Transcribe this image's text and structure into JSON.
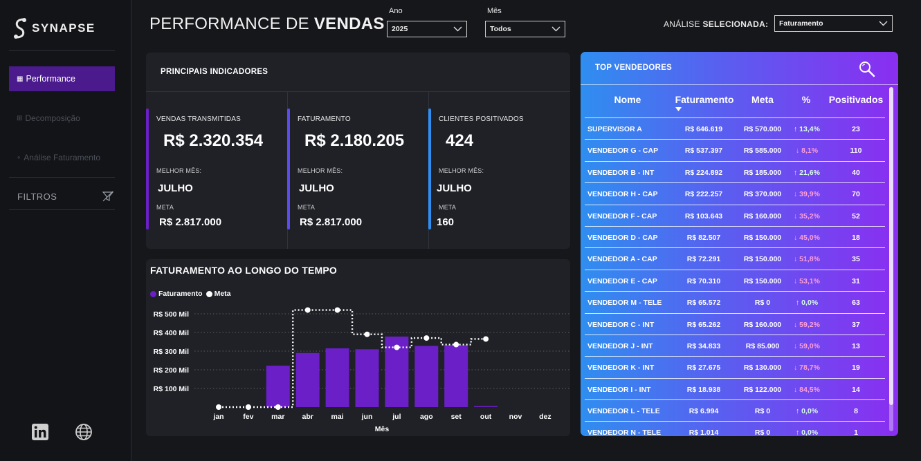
{
  "app": {
    "logo_text": "SYNAPSE"
  },
  "sidebar": {
    "items": [
      {
        "label": "Performance",
        "icon": "grid-icon"
      },
      {
        "label": "Decomposição",
        "icon": "tree-icon"
      },
      {
        "label": "Análise Faturamento",
        "icon": "link-icon"
      }
    ],
    "filters_label": "FILTROS"
  },
  "header": {
    "title_light": "PERFORMANCE DE ",
    "title_bold": "VENDAS",
    "year_label": "Ano",
    "year_value": "2025",
    "month_label": "Mês",
    "month_value": "Todos",
    "analysis_label_light": "ANÁLISE ",
    "analysis_label_bold": "SELECIONADA:",
    "analysis_value": "Faturamento"
  },
  "kpis": {
    "title": "PRINCIPAIS INDICADORES",
    "cards": [
      {
        "label": "VENDAS TRANSMITIDAS",
        "value": "R$ 2.320.354",
        "best_label": "MELHOR MÊS:",
        "best_value": "JULHO",
        "meta_label": "META",
        "meta_value": "R$ 2.817.000",
        "color": "#6a1fc7"
      },
      {
        "label": "FATURAMENTO",
        "value": "R$ 2.180.205",
        "best_label": "MELHOR MÊS:",
        "best_value": "JULHO",
        "meta_label": "META",
        "meta_value": "R$ 2.817.000",
        "color": "#5b4cf0"
      },
      {
        "label": "CLIENTES POSITIVADOS",
        "value": "424",
        "best_label": "MELHOR MÊS:",
        "best_value": "JULHO",
        "meta_label": "META",
        "meta_value": "160",
        "color": "#2f8ef0"
      }
    ]
  },
  "chart": {
    "title": "FATURAMENTO AO LONGO DO TEMPO",
    "legend": [
      "Faturamento",
      "Meta"
    ]
  },
  "chart_data": {
    "type": "bar",
    "title": "FATURAMENTO AO LONGO DO TEMPO",
    "categories": [
      "jan",
      "fev",
      "mar",
      "abr",
      "mai",
      "jun",
      "jul",
      "ago",
      "set",
      "out",
      "nov",
      "dez"
    ],
    "xlabel": "Mês",
    "ylabel": "",
    "y_ticks": [
      "R$ 100 Mil",
      "R$ 200 Mil",
      "R$ 300 Mil",
      "R$ 400 Mil",
      "R$ 500 Mil"
    ],
    "ylim": [
      0,
      500
    ],
    "grid": true,
    "legend_position": "top-left",
    "series": [
      {
        "name": "Faturamento",
        "type": "bar",
        "color": "#6a1fc7",
        "values": [
          0,
          0,
          222,
          290,
          315,
          310,
          378,
          328,
          333,
          5,
          null,
          null
        ]
      },
      {
        "name": "Meta",
        "type": "line",
        "color": "#ffffff",
        "values": [
          0,
          0,
          0,
          520,
          520,
          390,
          320,
          370,
          335,
          365,
          null,
          null
        ]
      }
    ]
  },
  "top_sellers": {
    "title": "TOP VENDEDORES",
    "headers": {
      "name": "Nome",
      "fat": "Faturamento",
      "meta": "Meta",
      "pct": "%",
      "pos": "Positivados"
    },
    "rows": [
      {
        "name": "SUPERVISOR A",
        "fat": "R$ 646.619",
        "meta": "R$ 570.000",
        "pct": "↑ 13,4%",
        "dir": "up",
        "pos": "23"
      },
      {
        "name": "VENDEDOR G - CAP",
        "fat": "R$ 537.397",
        "meta": "R$ 585.000",
        "pct": "↓ 8,1%",
        "dir": "down",
        "pos": "110"
      },
      {
        "name": "VENDEDOR B - INT",
        "fat": "R$ 224.892",
        "meta": "R$ 185.000",
        "pct": "↑ 21,6%",
        "dir": "up",
        "pos": "40"
      },
      {
        "name": "VENDEDOR H - CAP",
        "fat": "R$ 222.257",
        "meta": "R$ 370.000",
        "pct": "↓ 39,9%",
        "dir": "down",
        "pos": "70"
      },
      {
        "name": "VENDEDOR F - CAP",
        "fat": "R$ 103.643",
        "meta": "R$ 160.000",
        "pct": "↓ 35,2%",
        "dir": "down",
        "pos": "52"
      },
      {
        "name": "VENDEDOR D - CAP",
        "fat": "R$ 82.507",
        "meta": "R$ 150.000",
        "pct": "↓ 45,0%",
        "dir": "down",
        "pos": "18"
      },
      {
        "name": "VENDEDOR A - CAP",
        "fat": "R$ 72.291",
        "meta": "R$ 150.000",
        "pct": "↓ 51,8%",
        "dir": "down",
        "pos": "35"
      },
      {
        "name": "VENDEDOR E - CAP",
        "fat": "R$ 70.310",
        "meta": "R$ 150.000",
        "pct": "↓ 53,1%",
        "dir": "down",
        "pos": "31"
      },
      {
        "name": "VENDEDOR M - TELE",
        "fat": "R$ 65.572",
        "meta": "R$ 0",
        "pct": "↑ 0,0%",
        "dir": "up",
        "pos": "63"
      },
      {
        "name": "VENDEDOR C - INT",
        "fat": "R$ 65.262",
        "meta": "R$ 160.000",
        "pct": "↓ 59,2%",
        "dir": "down",
        "pos": "37"
      },
      {
        "name": "VENDEDOR J - INT",
        "fat": "R$ 34.833",
        "meta": "R$ 85.000",
        "pct": "↓ 59,0%",
        "dir": "down",
        "pos": "13"
      },
      {
        "name": "VENDEDOR K - INT",
        "fat": "R$ 27.675",
        "meta": "R$ 130.000",
        "pct": "↓ 78,7%",
        "dir": "down",
        "pos": "19"
      },
      {
        "name": "VENDEDOR I - INT",
        "fat": "R$ 18.938",
        "meta": "R$ 122.000",
        "pct": "↓ 84,5%",
        "dir": "down",
        "pos": "14"
      },
      {
        "name": "VENDEDOR L - TELE",
        "fat": "R$ 6.994",
        "meta": "R$ 0",
        "pct": "↑ 0,0%",
        "dir": "up",
        "pos": "8"
      },
      {
        "name": "VENDEDOR N - TELE",
        "fat": "R$ 1.014",
        "meta": "R$ 0",
        "pct": "↑ 0,0%",
        "dir": "up",
        "pos": "1"
      }
    ]
  }
}
